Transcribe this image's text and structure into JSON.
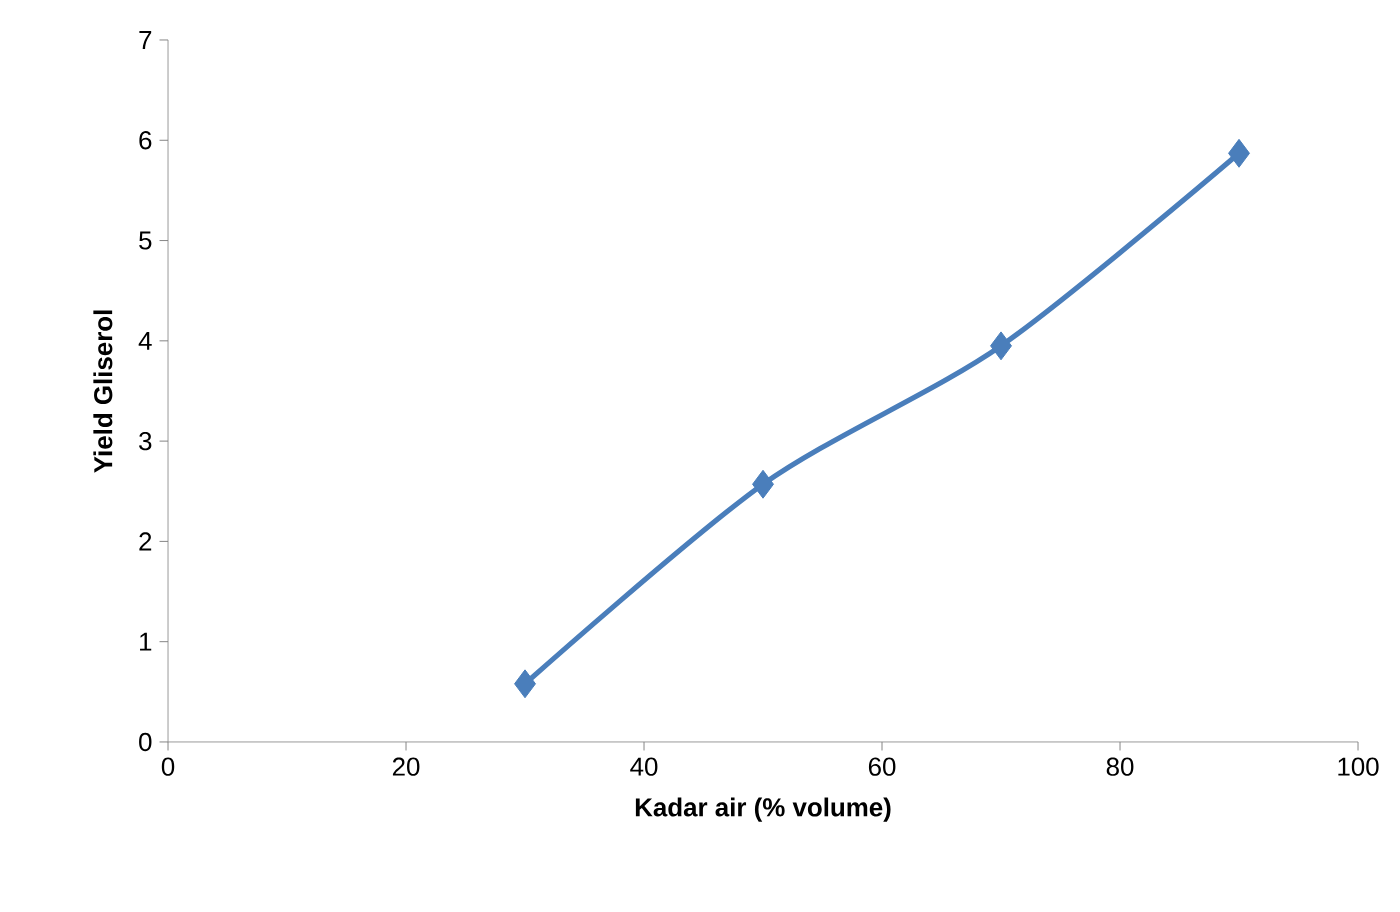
{
  "chart_data": {
    "type": "line",
    "xlabel": "Kadar air (% volume)",
    "ylabel": "Yield  Gliserol",
    "x": [
      30,
      50,
      70,
      90
    ],
    "series": [
      {
        "color": "#4a7ebb",
        "values": [
          0.58,
          2.57,
          3.95,
          5.87
        ]
      }
    ],
    "xlim": [
      0,
      100
    ],
    "xticks": [
      0,
      20,
      40,
      60,
      80,
      100
    ],
    "ylim": [
      0,
      7
    ],
    "yticks": [
      0,
      1,
      2,
      3,
      4,
      5,
      6,
      7
    ],
    "grid": false,
    "marker": "diamond",
    "line_style": "solid"
  }
}
